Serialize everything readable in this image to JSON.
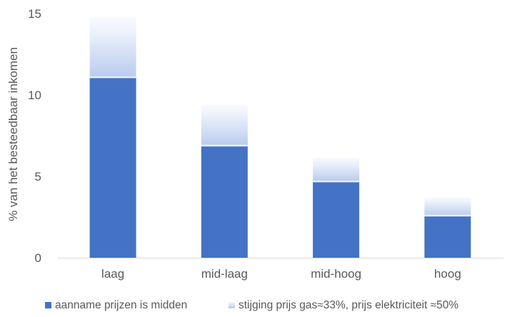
{
  "chart_data": {
    "type": "bar",
    "stacked": true,
    "categories": [
      "laag",
      "mid-laag",
      "mid-hoog",
      "hoog"
    ],
    "series": [
      {
        "name": "aanname prijzen is midden",
        "values": [
          11.1,
          6.9,
          4.7,
          2.6
        ],
        "color": "#4472C4"
      },
      {
        "name": "stijging prijs gas≈33%, prijs elektriciteit ≈50%",
        "values": [
          3.7,
          2.5,
          1.45,
          1.1
        ],
        "color": "#D6E0F5",
        "style": "gradient"
      }
    ],
    "ylabel": "% van het besteedbaar inkomen",
    "xlabel": "",
    "ylim": [
      0,
      15
    ],
    "yticks": [
      0,
      5,
      10,
      15
    ],
    "grid": false,
    "legend": "bottom"
  }
}
